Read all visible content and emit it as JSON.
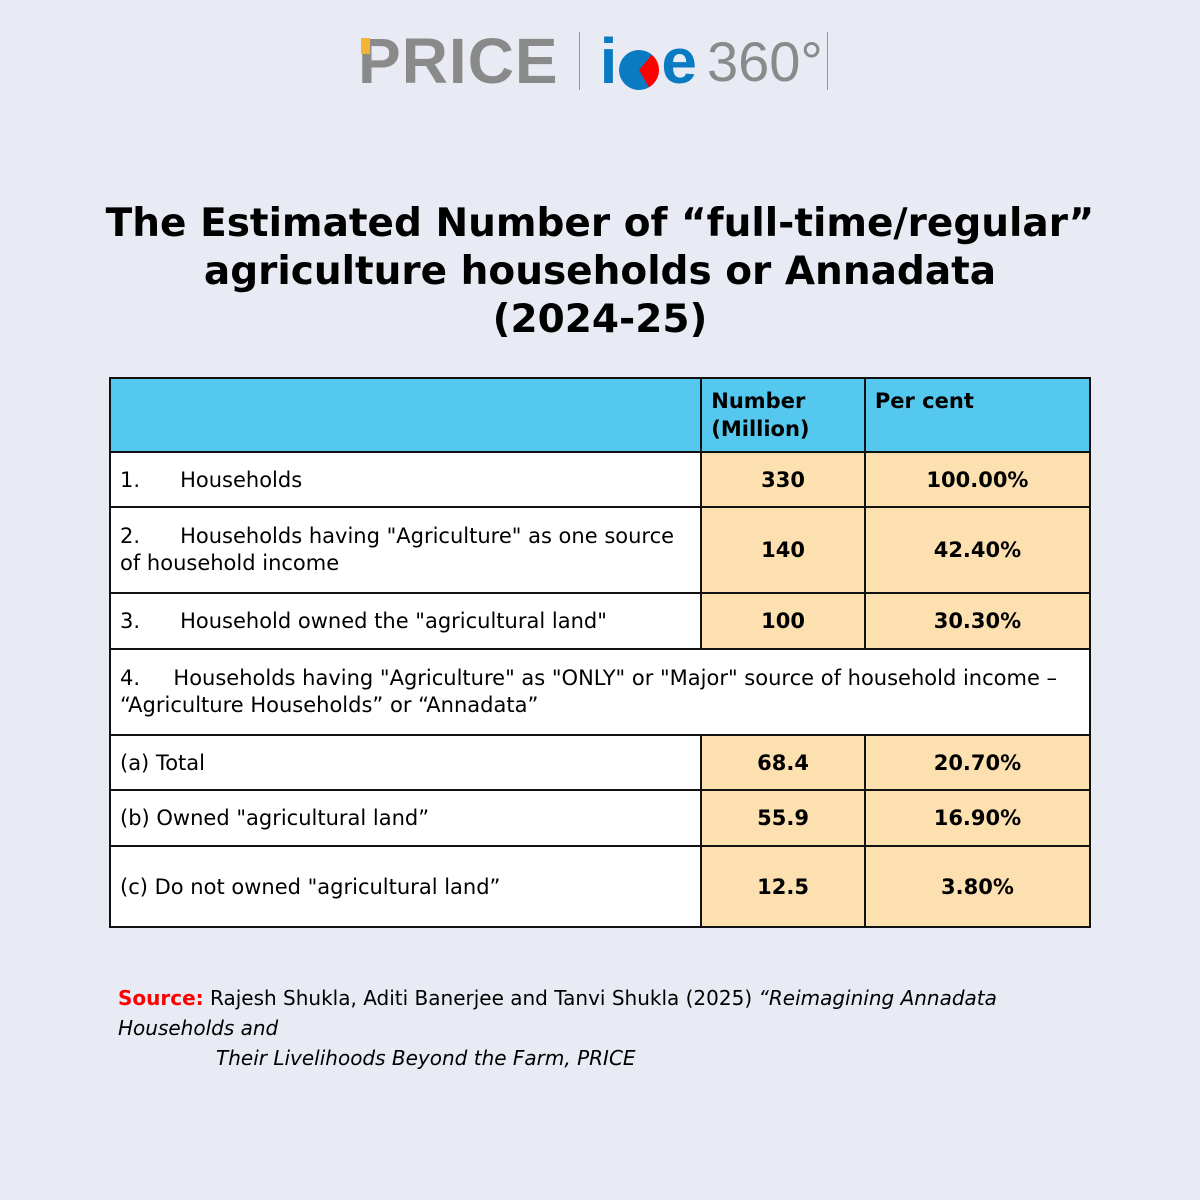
{
  "logo": {
    "price": "PRICE",
    "ice": "ice",
    "deg": "360°"
  },
  "title": {
    "line1": "The Estimated Number of “full-time/regular”",
    "line2": "agriculture households or Annadata",
    "line3": "(2024-25)"
  },
  "table": {
    "headers": [
      "",
      "Number (Million)",
      "Per cent"
    ],
    "rows": [
      {
        "label": "1.      Households",
        "number": "330",
        "percent": "100.00%"
      },
      {
        "label": "2.      Households having \"Agriculture\" as one source of household income",
        "number": "140",
        "percent": "42.40%"
      },
      {
        "label": "3.      Household owned the \"agricultural land\"",
        "number": "100",
        "percent": "30.30%"
      },
      {
        "label": "4.     Households having \"Agriculture\" as \"ONLY\" or \"Major\" source of household income – “Agriculture Households” or “Annadata”"
      },
      {
        "label": "(a) Total",
        "number": "68.4",
        "percent": "20.70%"
      },
      {
        "label": "(b) Owned \"agricultural land”",
        "number": "55.9",
        "percent": "16.90%"
      },
      {
        "label": "(c) Do not owned \"agricultural land”",
        "number": "12.5",
        "percent": "3.80%"
      }
    ]
  },
  "source": {
    "label": "Source:",
    "authors": " Rajesh Shukla, Aditi Banerjee and Tanvi Shukla (2025) ",
    "title1": "“Reimagining Annadata Households and",
    "title2": "Their Livelihoods Beyond the Farm, PRICE"
  }
}
